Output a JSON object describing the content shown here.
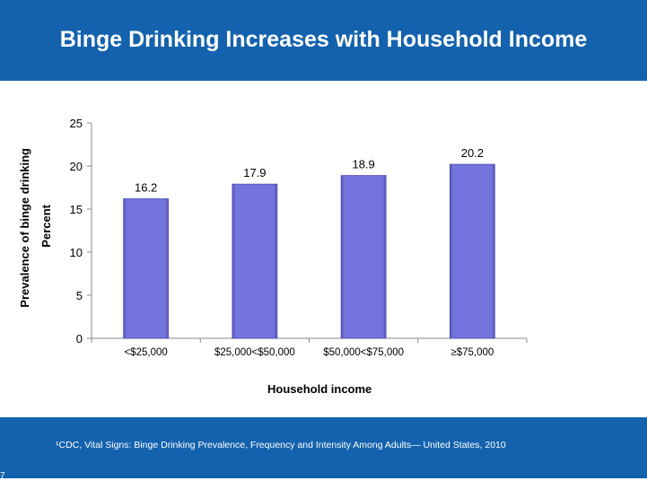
{
  "header": {
    "title": "Binge Drinking Increases with Household Income"
  },
  "footer": {
    "source": "¹CDC, Vital Signs: Binge Drinking Prevalence, Frequency and Intensity Among Adults— United States, 2010",
    "page_number": "7"
  },
  "colors": {
    "header_bg": "#1462ad",
    "bar": "#7272dc"
  },
  "chart_data": {
    "type": "bar",
    "title": "",
    "xlabel": "Household income",
    "ylabel": "Percent",
    "ylabel_secondary": "Prevalence of binge drinking",
    "categories": [
      "<$25,000",
      "$25,000<$50,000",
      "$50,000<$75,000",
      "≥$75,000"
    ],
    "values": [
      16.2,
      17.9,
      18.9,
      20.2
    ],
    "data_labels": [
      "16.2",
      "17.9",
      "18.9",
      "20.2"
    ],
    "ylim": [
      0,
      25
    ],
    "yticks": [
      0,
      5,
      10,
      15,
      20,
      25
    ],
    "grid": false,
    "legend": "none"
  }
}
